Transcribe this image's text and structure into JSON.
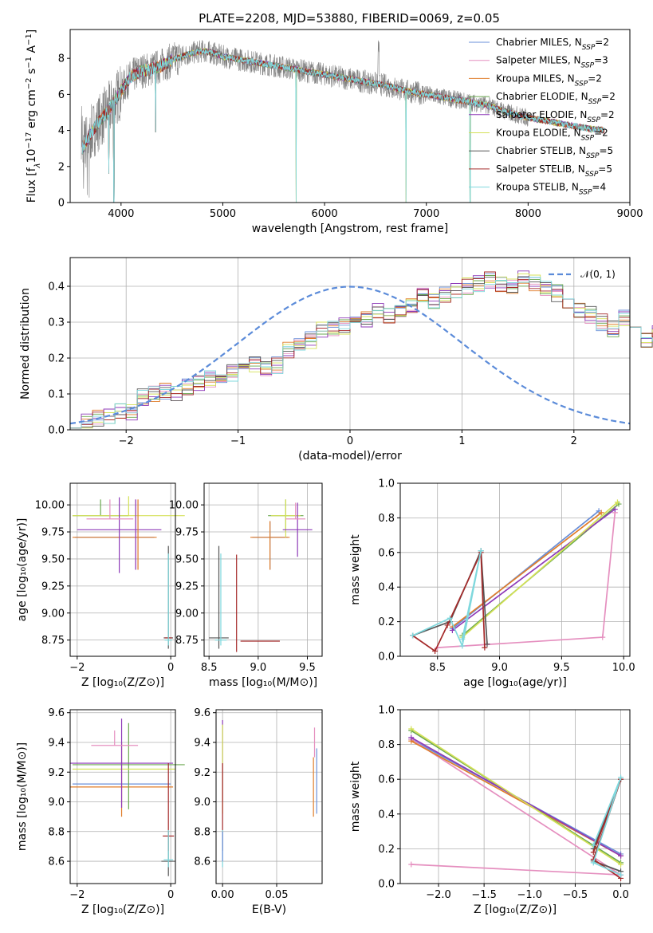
{
  "colors": {
    "Chabrier MILES": "#6a8fd8",
    "Salpeter MILES": "#e58fbf",
    "Kroupa MILES": "#e07d2a",
    "Chabrier ELODIE": "#6aa84f",
    "Salpeter ELODIE": "#8e3ab8",
    "Kroupa ELODIE": "#d4e157",
    "Chabrier STELIB": "#555555",
    "Salpeter STELIB": "#a52a2a",
    "Kroupa STELIB": "#7fd8dd",
    "normal": "#5b8bd9",
    "spectrum": "#808080"
  },
  "chart_data": [
    {
      "id": "spectrum",
      "type": "line",
      "title": "PLATE=2208, MJD=53880, FIBERID=0069, z=0.05",
      "xlabel": "wavelength [Angstrom, rest frame]",
      "ylabel_parts": [
        "Flux [f",
        "λ",
        "10",
        "−17",
        " erg cm",
        "−2",
        " s",
        "−1",
        " A",
        "−1",
        "]"
      ],
      "xlim": [
        3500,
        9000
      ],
      "ylim": [
        0,
        9.6
      ],
      "xticks": [
        4000,
        5000,
        6000,
        7000,
        8000,
        9000
      ],
      "yticks": [
        0,
        2,
        4,
        6,
        8
      ],
      "grid": false,
      "legend_position": "top-right",
      "legend": [
        {
          "name": "Chabrier MILES",
          "nssp": "2"
        },
        {
          "name": "Salpeter MILES",
          "nssp": "3"
        },
        {
          "name": "Kroupa MILES",
          "nssp": "2"
        },
        {
          "name": "Chabrier ELODIE",
          "nssp": "2"
        },
        {
          "name": "Salpeter ELODIE",
          "nssp": "2"
        },
        {
          "name": "Kroupa ELODIE",
          "nssp": "2"
        },
        {
          "name": "Chabrier STELIB",
          "nssp": "5"
        },
        {
          "name": "Salpeter STELIB",
          "nssp": "5"
        },
        {
          "name": "Kroupa STELIB",
          "nssp": "4"
        }
      ],
      "legend_nssp_label": "N",
      "legend_nssp_sub": "SSP",
      "continuum": [
        [
          3620,
          3.0
        ],
        [
          3700,
          3.8
        ],
        [
          3800,
          4.6
        ],
        [
          3900,
          5.3
        ],
        [
          4000,
          6.2
        ],
        [
          4100,
          7.0
        ],
        [
          4200,
          7.3
        ],
        [
          4300,
          7.4
        ],
        [
          4400,
          7.6
        ],
        [
          4500,
          7.9
        ],
        [
          4600,
          8.1
        ],
        [
          4700,
          8.3
        ],
        [
          4800,
          8.4
        ],
        [
          4900,
          8.3
        ],
        [
          5000,
          8.1
        ],
        [
          5200,
          7.9
        ],
        [
          5400,
          7.7
        ],
        [
          5600,
          7.5
        ],
        [
          5800,
          7.3
        ],
        [
          6000,
          7.1
        ],
        [
          6200,
          6.9
        ],
        [
          6400,
          6.7
        ],
        [
          6600,
          6.5
        ],
        [
          6800,
          6.2
        ],
        [
          7000,
          6.0
        ],
        [
          7200,
          5.8
        ],
        [
          7400,
          5.6
        ],
        [
          7600,
          5.4
        ],
        [
          7800,
          5.0
        ],
        [
          8000,
          4.7
        ],
        [
          8200,
          4.5
        ],
        [
          8400,
          4.3
        ],
        [
          8600,
          4.1
        ],
        [
          8750,
          4.0
        ]
      ],
      "data_end": 8000,
      "dips": [
        {
          "x": 3880,
          "y": 1.6
        },
        {
          "x": 3930,
          "y": 0.0
        },
        {
          "x": 4340,
          "y": 3.9
        },
        {
          "x": 5720,
          "y": 0.0
        },
        {
          "x": 6800,
          "y": 0.0
        },
        {
          "x": 7430,
          "y": 0.0
        }
      ]
    },
    {
      "id": "residuals",
      "type": "step",
      "xlabel": "(data-model)/error",
      "ylabel": "Normed distribution",
      "xlim": [
        -2.5,
        2.5
      ],
      "ylim": [
        0,
        0.48
      ],
      "xticks": [
        -2,
        -1,
        0,
        1,
        2
      ],
      "xtick_labels": [
        "−2",
        "−1",
        "0",
        "1",
        "2"
      ],
      "yticks": [
        0.0,
        0.1,
        0.2,
        0.3,
        0.4
      ],
      "ytick_labels": [
        "0.0",
        "0.1",
        "0.2",
        "0.3",
        "0.4"
      ],
      "grid": true,
      "legend_position": "top-right",
      "legend": [
        {
          "name": "𝒩(0, 1)",
          "style": "dashed"
        }
      ],
      "bins": {
        "start": -2.5,
        "width": 0.1
      },
      "base": [
        0.02,
        0.02,
        0.03,
        0.04,
        0.05,
        0.05,
        0.09,
        0.1,
        0.11,
        0.1,
        0.12,
        0.13,
        0.14,
        0.15,
        0.16,
        0.19,
        0.18,
        0.17,
        0.18,
        0.22,
        0.24,
        0.25,
        0.28,
        0.28,
        0.29,
        0.3,
        0.31,
        0.33,
        0.32,
        0.34,
        0.35,
        0.37,
        0.36,
        0.38,
        0.39,
        0.4,
        0.41,
        0.42,
        0.41,
        0.4,
        0.42,
        0.41,
        0.39,
        0.38,
        0.36,
        0.33,
        0.32,
        0.3,
        0.28,
        0.31,
        0.27,
        0.25,
        0.27,
        0.24,
        0.22,
        0.2,
        0.21,
        0.18,
        0.17,
        0.15,
        0.13,
        0.12,
        0.1,
        0.09,
        0.08,
        0.07,
        0.06,
        0.06,
        0.05,
        0.04,
        0.04,
        0.04,
        0.03,
        0.03,
        0.03
      ]
    },
    {
      "id": "age_vs_Z",
      "type": "errorbar",
      "xlabel": "Z [log₁₀(Z/Z⊙)]",
      "ylabel": "age  [log₁₀(age/yr)]",
      "xlim": [
        -2.15,
        0.1
      ],
      "ylim": [
        8.6,
        10.2
      ],
      "xticks": [
        -2,
        0
      ],
      "xtick_labels": [
        "−2",
        "0"
      ],
      "yticks": [
        8.75,
        9.0,
        9.25,
        9.5,
        9.75,
        10.0
      ],
      "ytick_labels": [
        "8.75",
        "9.00",
        "9.25",
        "9.50",
        "9.75",
        "10.00"
      ],
      "grid": true
    },
    {
      "id": "age_vs_mass",
      "type": "errorbar",
      "xlabel": "mass [log₁₀(M/M⊙)]",
      "ylabel": "",
      "xlim": [
        8.45,
        9.65
      ],
      "ylim": [
        8.6,
        10.2
      ],
      "xticks": [
        8.5,
        9.0,
        9.5
      ],
      "xtick_labels": [
        "8.5",
        "9.0",
        "9.5"
      ],
      "yticks": [
        8.75,
        9.0,
        9.25,
        9.5,
        9.75,
        10.0
      ],
      "ytick_labels": [
        "8.75",
        "9.00",
        "9.25",
        "9.50",
        "9.75",
        "10.00"
      ],
      "grid": true
    },
    {
      "id": "weight_vs_age",
      "type": "line",
      "xlabel": "age  [log₁₀(age/yr)]",
      "ylabel": "mass weight",
      "xlim": [
        8.2,
        10.05
      ],
      "ylim": [
        0,
        1
      ],
      "xticks": [
        8.5,
        9.0,
        9.5,
        10.0
      ],
      "xtick_labels": [
        "8.5",
        "9.0",
        "9.5",
        "10.0"
      ],
      "yticks": [
        0,
        0.2,
        0.4,
        0.6,
        0.8,
        1.0
      ],
      "ytick_labels": [
        "0.0",
        "0.2",
        "0.4",
        "0.6",
        "0.8",
        "1.0"
      ],
      "grid": true,
      "series": [
        {
          "name": "Chabrier MILES",
          "points": [
            [
              8.62,
              0.16
            ],
            [
              9.8,
              0.84
            ]
          ]
        },
        {
          "name": "Salpeter MILES",
          "points": [
            [
              8.5,
              0.05
            ],
            [
              9.83,
              0.11
            ],
            [
              9.93,
              0.83
            ]
          ]
        },
        {
          "name": "Kroupa MILES",
          "points": [
            [
              8.62,
              0.17
            ],
            [
              9.82,
              0.83
            ]
          ]
        },
        {
          "name": "Chabrier ELODIE",
          "points": [
            [
              8.7,
              0.12
            ],
            [
              9.96,
              0.88
            ]
          ]
        },
        {
          "name": "Salpeter ELODIE",
          "points": [
            [
              8.62,
              0.15
            ],
            [
              9.93,
              0.85
            ]
          ]
        },
        {
          "name": "Kroupa ELODIE",
          "points": [
            [
              8.7,
              0.11
            ],
            [
              9.95,
              0.89
            ]
          ]
        },
        {
          "name": "Chabrier STELIB",
          "points": [
            [
              8.3,
              0.12
            ],
            [
              8.6,
              0.2
            ],
            [
              8.85,
              0.61
            ],
            [
              8.9,
              0.07
            ]
          ]
        },
        {
          "name": "Salpeter STELIB",
          "points": [
            [
              8.3,
              0.12
            ],
            [
              8.48,
              0.03
            ],
            [
              8.58,
              0.18
            ],
            [
              8.85,
              0.6
            ],
            [
              8.88,
              0.05
            ]
          ]
        },
        {
          "name": "Kroupa STELIB",
          "points": [
            [
              8.3,
              0.12
            ],
            [
              8.6,
              0.22
            ],
            [
              8.7,
              0.06
            ],
            [
              8.85,
              0.61
            ],
            [
              8.7,
              0.1
            ]
          ]
        }
      ]
    },
    {
      "id": "mass_vs_Z",
      "type": "errorbar",
      "xlabel": "Z [log₁₀(Z/Z⊙)]",
      "ylabel": "mass [log₁₀(M/M⊙)]",
      "xlim": [
        -2.15,
        0.1
      ],
      "ylim": [
        8.45,
        9.62
      ],
      "xticks": [
        -2,
        0
      ],
      "xtick_labels": [
        "−2",
        "0"
      ],
      "yticks": [
        8.6,
        8.8,
        9.0,
        9.2,
        9.4,
        9.6
      ],
      "ytick_labels": [
        "8.6",
        "8.8",
        "9.0",
        "9.2",
        "9.4",
        "9.6"
      ],
      "grid": true
    },
    {
      "id": "mass_vs_EBV",
      "type": "errorbar",
      "xlabel": "E(B-V)",
      "ylabel": "",
      "xlim": [
        -0.006,
        0.092
      ],
      "ylim": [
        8.45,
        9.62
      ],
      "xticks": [
        0.0,
        0.05
      ],
      "xtick_labels": [
        "0.00",
        "0.05"
      ],
      "yticks": [
        8.6,
        8.8,
        9.0,
        9.2,
        9.4,
        9.6
      ],
      "ytick_labels": [
        "8.6",
        "8.8",
        "9.0",
        "9.2",
        "9.4",
        "9.6"
      ],
      "grid": true
    },
    {
      "id": "weight_vs_Z",
      "type": "line",
      "xlabel": "Z [log₁₀(Z/Z⊙)]",
      "ylabel": "mass weight",
      "xlim": [
        -2.42,
        0.1
      ],
      "ylim": [
        0,
        1
      ],
      "xticks": [
        -2.0,
        -1.5,
        -1.0,
        -0.5,
        0.0
      ],
      "xtick_labels": [
        "−2.0",
        "−1.5",
        "−1.0",
        "−0.5",
        "0.0"
      ],
      "yticks": [
        0,
        0.2,
        0.4,
        0.6,
        0.8,
        1.0
      ],
      "ytick_labels": [
        "0.0",
        "0.2",
        "0.4",
        "0.6",
        "0.8",
        "1.0"
      ],
      "grid": true,
      "series": [
        {
          "name": "Chabrier MILES",
          "points": [
            [
              -2.3,
              0.83
            ],
            [
              0.0,
              0.17
            ]
          ]
        },
        {
          "name": "Salpeter MILES",
          "points": [
            [
              -2.3,
              0.11
            ],
            [
              0.0,
              0.05
            ],
            [
              -2.3,
              0.83
            ]
          ]
        },
        {
          "name": "Kroupa MILES",
          "points": [
            [
              -2.3,
              0.82
            ],
            [
              0.0,
              0.16
            ]
          ]
        },
        {
          "name": "Chabrier ELODIE",
          "points": [
            [
              -2.3,
              0.88
            ],
            [
              0.0,
              0.12
            ]
          ]
        },
        {
          "name": "Salpeter ELODIE",
          "points": [
            [
              -2.3,
              0.84
            ],
            [
              0.0,
              0.16
            ]
          ]
        },
        {
          "name": "Kroupa ELODIE",
          "points": [
            [
              -2.3,
              0.89
            ],
            [
              0.0,
              0.11
            ]
          ]
        },
        {
          "name": "Chabrier STELIB",
          "points": [
            [
              -0.3,
              0.2
            ],
            [
              0.0,
              0.6
            ],
            [
              -0.3,
              0.13
            ],
            [
              0.0,
              0.07
            ]
          ]
        },
        {
          "name": "Salpeter STELIB",
          "points": [
            [
              -0.3,
              0.18
            ],
            [
              0.0,
              0.6
            ],
            [
              -0.3,
              0.14
            ],
            [
              0.0,
              0.03
            ]
          ]
        },
        {
          "name": "Kroupa STELIB",
          "points": [
            [
              -0.3,
              0.22
            ],
            [
              0.0,
              0.61
            ],
            [
              -0.3,
              0.12
            ],
            [
              0.0,
              0.05
            ]
          ]
        }
      ]
    }
  ]
}
